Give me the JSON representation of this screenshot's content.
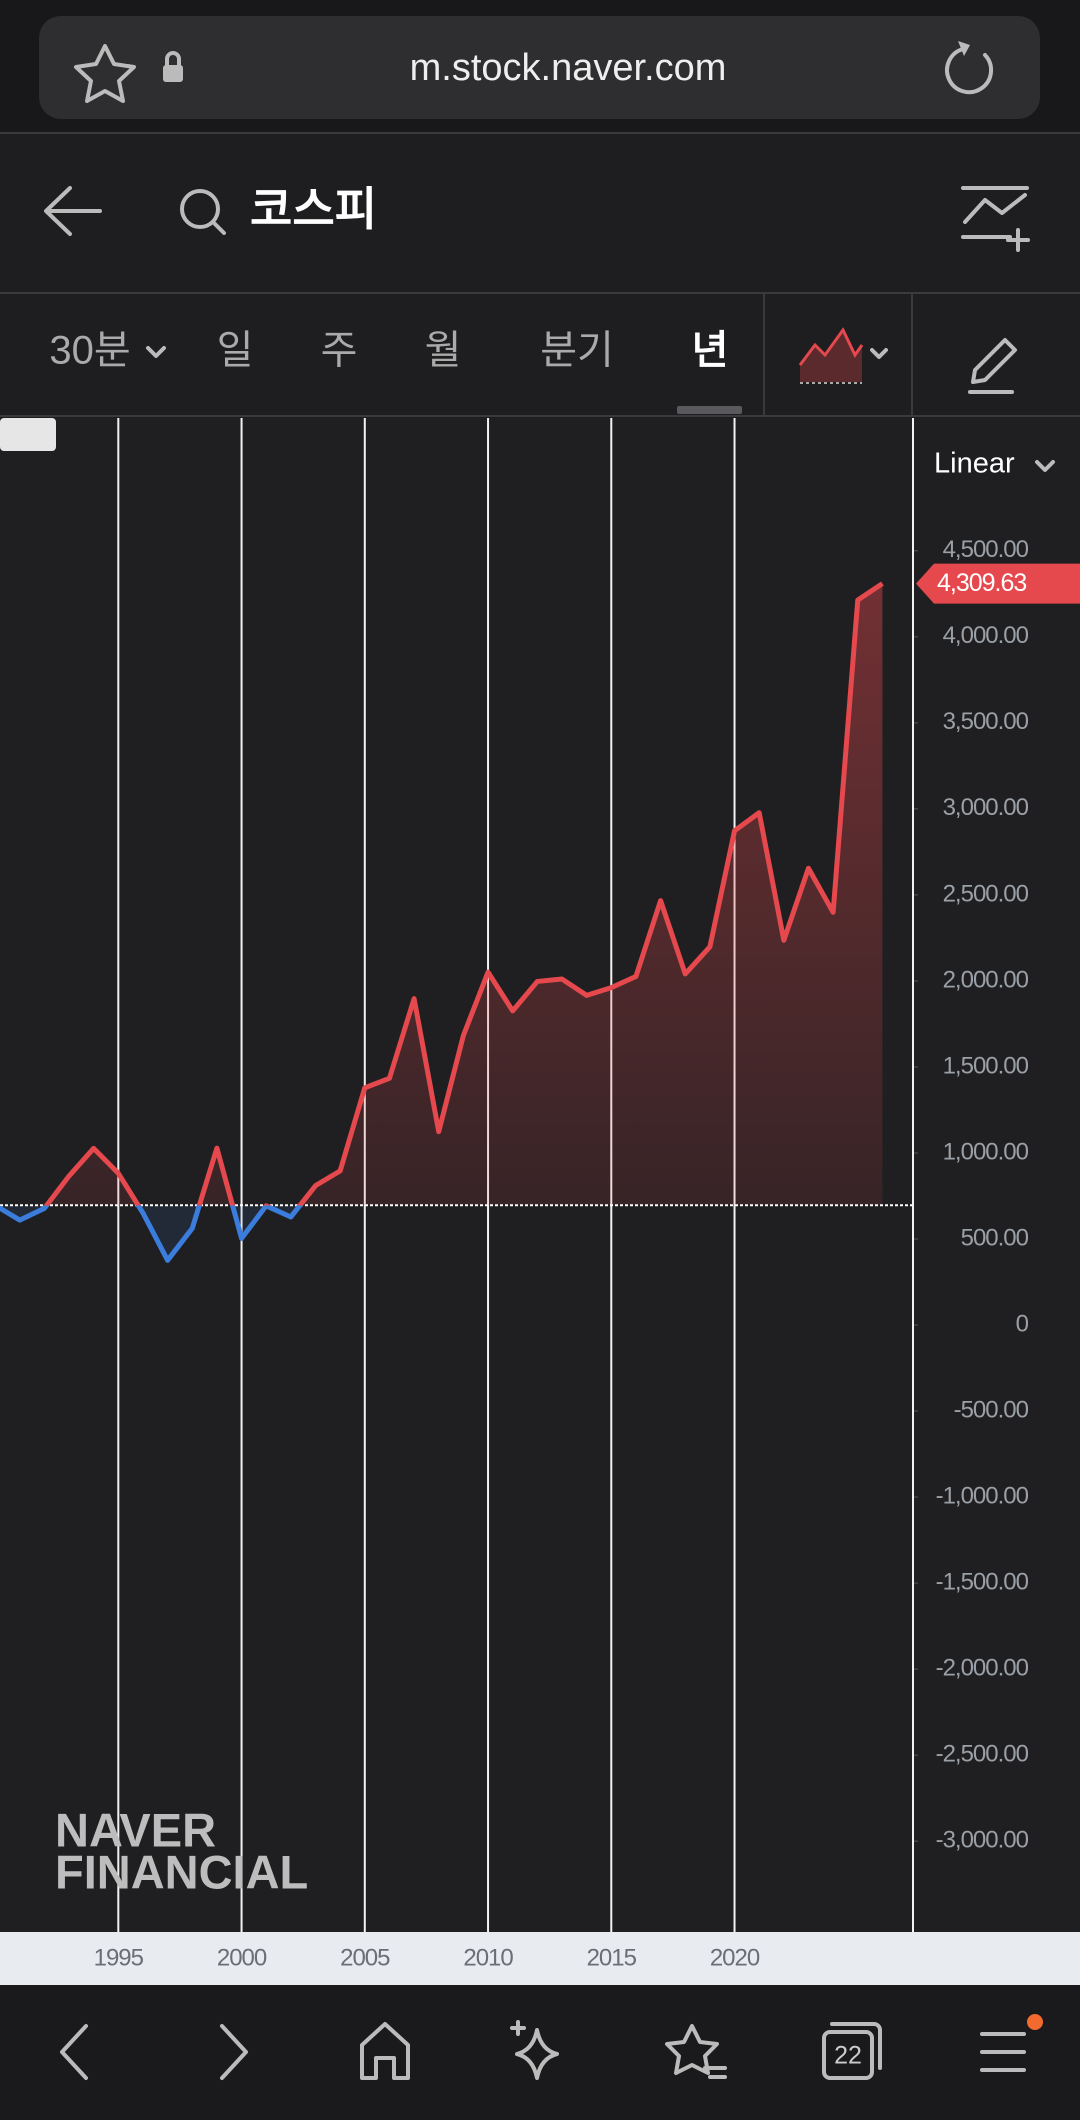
{
  "browser": {
    "url": "m.stock.naver.com",
    "tab_count": "22"
  },
  "header": {
    "title": "코스피"
  },
  "tabs": [
    "30분",
    "일",
    "주",
    "월",
    "분기",
    "년"
  ],
  "chart_data": {
    "type": "line",
    "scale_label": "Linear",
    "x": [
      1990,
      1991,
      1992,
      1993,
      1994,
      1995,
      1996,
      1997,
      1998,
      1999,
      2000,
      2001,
      2002,
      2003,
      2004,
      2005,
      2006,
      2007,
      2008,
      2009,
      2010,
      2011,
      2012,
      2013,
      2014,
      2015,
      2016,
      2017,
      2018,
      2019,
      2020,
      2021,
      2022,
      2023,
      2024,
      2025,
      2026
    ],
    "values": [
      696,
      610,
      678,
      866,
      1027,
      882,
      651,
      376,
      562,
      1028,
      504,
      693,
      628,
      810,
      896,
      1379,
      1434,
      1897,
      1124,
      1683,
      2051,
      1826,
      1997,
      2011,
      1916,
      1961,
      2026,
      2467,
      2041,
      2198,
      2873,
      2978,
      2236,
      2655,
      2399,
      4214,
      4309.63
    ],
    "current_label": "4,309.63",
    "color": "#e5484d",
    "below_color": "#3b7ddd",
    "xlim": [
      1990.2,
      2027.2
    ],
    "ylim": [
      -3528,
      5272
    ],
    "xticks": [
      1995,
      2000,
      2005,
      2010,
      2015,
      2020
    ],
    "yticks": [
      {
        "value": 4500,
        "label": "4,500.00"
      },
      {
        "value": 4000,
        "label": "4,000.00"
      },
      {
        "value": 3500,
        "label": "3,500.00"
      },
      {
        "value": 3000,
        "label": "3,000.00"
      },
      {
        "value": 2500,
        "label": "2,500.00"
      },
      {
        "value": 2000,
        "label": "2,000.00"
      },
      {
        "value": 1500,
        "label": "1,500.00"
      },
      {
        "value": 1000,
        "label": "1,000.00"
      },
      {
        "value": 500,
        "label": "500.00"
      },
      0,
      {
        "value": -500,
        "label": "-500.00"
      },
      {
        "value": -1000,
        "label": "-1,000.00"
      },
      {
        "value": -1500,
        "label": "-1,500.00"
      },
      {
        "value": -2000,
        "label": "-2,000.00"
      },
      {
        "value": -2500,
        "label": "-2,500.00"
      },
      {
        "value": -3000,
        "label": "-3,000.00"
      }
    ],
    "grid": true
  },
  "watermark": [
    "NAVER",
    "FINANCIAL"
  ]
}
